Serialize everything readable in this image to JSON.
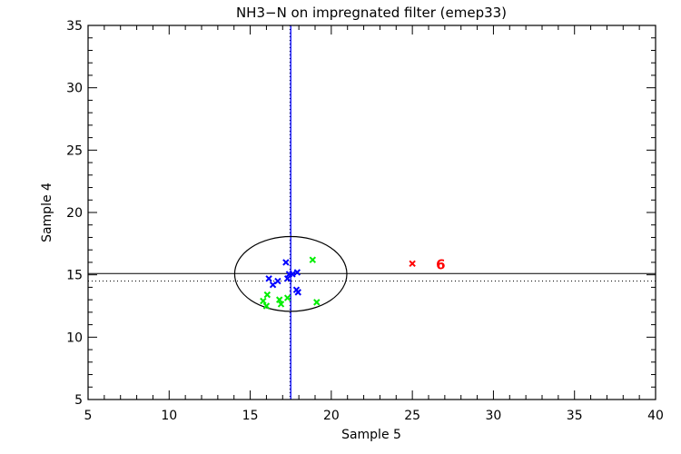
{
  "chart_data": {
    "type": "scatter",
    "title": "NH3−N on impregnated filter (emep33)",
    "xlabel": "Sample 5",
    "ylabel": "Sample 4",
    "xlim": [
      5,
      40
    ],
    "ylim": [
      5,
      35
    ],
    "xticks": [
      5,
      10,
      15,
      20,
      25,
      30,
      35,
      40
    ],
    "yticks": [
      5,
      10,
      15,
      20,
      25,
      30,
      35
    ],
    "minor_tick_step": 1,
    "grid": false,
    "reference_lines": {
      "vertical_solid": 17.5,
      "vertical_dotted": 17.45,
      "horizontal_solid": 15.1,
      "horizontal_dotted": 14.5,
      "vertical_color": "#0000ff",
      "horizontal_color": "#000000"
    },
    "ellipse": {
      "cx": 17.5,
      "cy": 15.07,
      "rx": 3.46,
      "ry": 3.0,
      "color": "#000000"
    },
    "series": [
      {
        "color": "#0000ff",
        "marker": "x",
        "points": [
          [
            17.2,
            16.0
          ],
          [
            17.4,
            15.05
          ],
          [
            17.6,
            15.05
          ],
          [
            17.9,
            15.2
          ],
          [
            17.3,
            14.7
          ],
          [
            16.15,
            14.7
          ],
          [
            16.4,
            14.2
          ],
          [
            16.7,
            14.5
          ],
          [
            17.85,
            13.8
          ],
          [
            17.95,
            13.6
          ]
        ]
      },
      {
        "color": "#00ee00",
        "marker": "x",
        "points": [
          [
            18.85,
            16.2
          ],
          [
            19.1,
            12.8
          ],
          [
            16.05,
            13.4
          ],
          [
            15.8,
            12.9
          ],
          [
            16.0,
            12.5
          ],
          [
            16.8,
            13.0
          ],
          [
            16.9,
            12.65
          ],
          [
            17.3,
            13.15
          ]
        ]
      },
      {
        "color": "#ff0000",
        "marker": "x",
        "points": [
          [
            25.0,
            15.9
          ]
        ],
        "labels": [
          "6"
        ]
      }
    ]
  }
}
